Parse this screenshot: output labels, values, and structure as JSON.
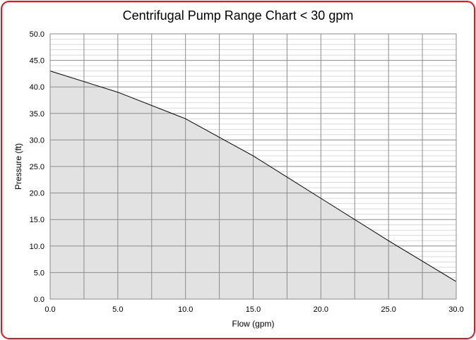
{
  "chart_data": {
    "type": "area",
    "title": "Centrifugal Pump Range Chart < 30 gpm",
    "xlabel": "Flow (gpm)",
    "ylabel": "Pressure (ft)",
    "xlim": [
      0,
      30
    ],
    "ylim": [
      0,
      50
    ],
    "x_ticks": [
      "0.0",
      "5.0",
      "10.0",
      "15.0",
      "20.0",
      "25.0",
      "30.0"
    ],
    "y_ticks": [
      "0.0",
      "5.0",
      "10.0",
      "15.0",
      "20.0",
      "25.0",
      "30.0",
      "35.0",
      "40.0",
      "45.0",
      "50.0"
    ],
    "x_major_step": 2.5,
    "y_major_step": 5,
    "y_minor_step": 1,
    "grid": true,
    "legend": "none",
    "series": [
      {
        "x": [
          0,
          5,
          10,
          15,
          20,
          25,
          30
        ],
        "y": [
          43,
          39,
          34,
          27,
          19,
          11,
          3.3
        ]
      }
    ],
    "colors": {
      "fill": "#e2e2e2",
      "line": "#000000",
      "major_grid": "#8c8c8c",
      "minor_grid": "#d9d9d9",
      "frame": "#e3141b"
    }
  }
}
